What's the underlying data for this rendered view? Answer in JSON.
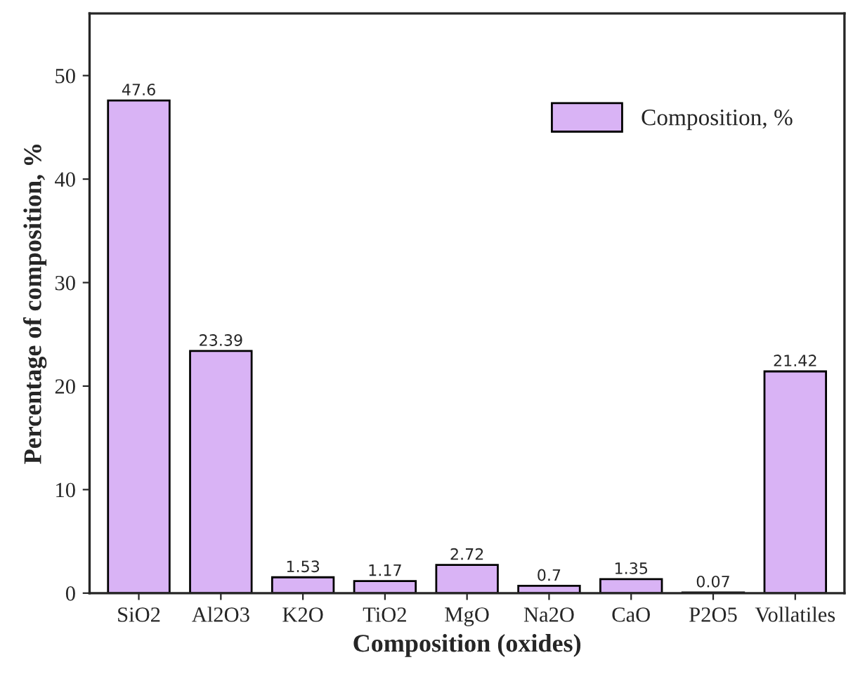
{
  "chart_data": {
    "type": "bar",
    "xlabel": "Composition (oxides)",
    "ylabel": "Percentage of composition, %",
    "categories": [
      "SiO2",
      "Al2O3",
      "K2O",
      "TiO2",
      "MgO",
      "Na2O",
      "CaO",
      "P2O5",
      "Vollatiles"
    ],
    "series": [
      {
        "name": "Composition, %",
        "color": "#d9b3f5",
        "values": [
          47.6,
          23.39,
          1.53,
          1.17,
          2.72,
          0.7,
          1.35,
          0.07,
          21.42
        ]
      }
    ],
    "ylim": [
      0,
      56
    ],
    "yticks": [
      0,
      10,
      20,
      30,
      40,
      50
    ],
    "data_labels": true,
    "legend": "top right",
    "grid": false
  }
}
